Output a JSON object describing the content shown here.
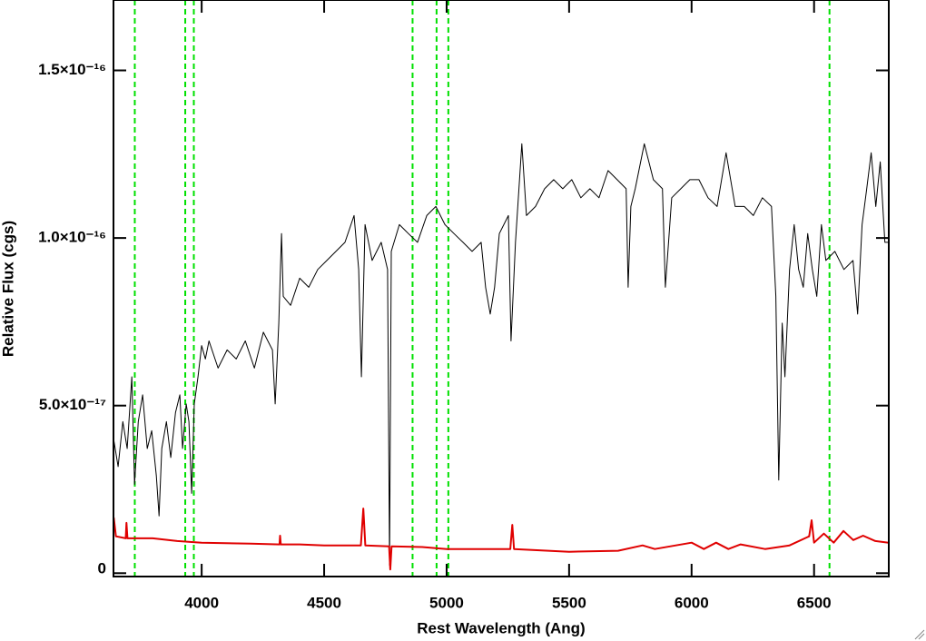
{
  "chart_data": {
    "type": "line",
    "x_label": "Rest Wavelength (Ang)",
    "y_label": "Relative Flux (cgs)",
    "xlim": [
      3640,
      6805
    ],
    "ylim": [
      -1e-18,
      1.71e-16
    ],
    "xticks": [
      4000,
      4500,
      5000,
      5500,
      6000,
      6500
    ],
    "yticks": [
      0,
      {
        "value": 5e-17,
        "label": "5.0×10⁻¹⁷"
      },
      {
        "value": 1e-16,
        "label": "1.0×10⁻¹⁶"
      },
      {
        "value": 1.5e-16,
        "label": "1.5×10⁻¹⁶"
      }
    ],
    "vlines": [
      3727,
      3933,
      3968,
      4861,
      4959,
      5007,
      6563
    ],
    "vline_color": "#00e000",
    "series": [
      {
        "color": "#000000",
        "x": [
          3641,
          3659,
          3678,
          3696,
          3715,
          3726,
          3741,
          3759,
          3778,
          3796,
          3815,
          3826,
          3837,
          3856,
          3874,
          3893,
          3911,
          3922,
          3937,
          3948,
          3959,
          3970,
          3985,
          4000,
          4015,
          4030,
          4067,
          4104,
          4141,
          4178,
          4215,
          4252,
          4289,
          4300,
          4315,
          4326,
          4333,
          4363,
          4400,
          4437,
          4474,
          4511,
          4548,
          4585,
          4622,
          4641,
          4652,
          4667,
          4696,
          4733,
          4759,
          4767,
          4774,
          4807,
          4844,
          4881,
          4919,
          4956,
          4993,
          5030,
          5067,
          5104,
          5141,
          5159,
          5178,
          5196,
          5215,
          5252,
          5263,
          5281,
          5307,
          5326,
          5363,
          5400,
          5437,
          5474,
          5511,
          5548,
          5585,
          5622,
          5659,
          5696,
          5733,
          5741,
          5752,
          5770,
          5807,
          5844,
          5881,
          5893,
          5919,
          5956,
          5993,
          6030,
          6067,
          6104,
          6141,
          6178,
          6215,
          6252,
          6289,
          6326,
          6344,
          6356,
          6370,
          6381,
          6400,
          6419,
          6437,
          6456,
          6474,
          6493,
          6511,
          6530,
          6548,
          6585,
          6622,
          6659,
          6678,
          6696,
          6715,
          6733,
          6752,
          6770,
          6789,
          6804
        ],
        "values": [
          3.98e-17,
          3.18e-17,
          4.52e-17,
          3.72e-17,
          5.86e-17,
          2.65e-17,
          4.52e-17,
          5.32e-17,
          3.72e-17,
          4.25e-17,
          2.91e-17,
          1.71e-17,
          3.72e-17,
          4.52e-17,
          3.45e-17,
          4.79e-17,
          5.32e-17,
          3.72e-17,
          5.05e-17,
          4.52e-17,
          2.38e-17,
          5.05e-17,
          5.86e-17,
          6.79e-17,
          6.39e-17,
          6.93e-17,
          6.12e-17,
          6.66e-17,
          6.39e-17,
          6.93e-17,
          6.12e-17,
          7.19e-17,
          6.66e-17,
          5.05e-17,
          7.46e-17,
          1.013e-16,
          8.26e-17,
          7.99e-17,
          8.8e-17,
          8.53e-17,
          9.06e-17,
          9.33e-17,
          9.6e-17,
          9.87e-17,
          1.067e-16,
          9.06e-17,
          5.86e-17,
          1.04e-16,
          9.33e-17,
          9.87e-17,
          9.06e-17,
          2.4e-18,
          9.6e-17,
          1.04e-16,
          1.013e-16,
          9.87e-17,
          1.067e-16,
          1.094e-16,
          1.04e-16,
          1.013e-16,
          9.87e-17,
          9.6e-17,
          9.87e-17,
          8.53e-17,
          7.73e-17,
          8.53e-17,
          1.013e-16,
          1.067e-16,
          6.93e-17,
          9.87e-17,
          1.281e-16,
          1.067e-16,
          1.094e-16,
          1.147e-16,
          1.174e-16,
          1.147e-16,
          1.174e-16,
          1.12e-16,
          1.147e-16,
          1.12e-16,
          1.201e-16,
          1.174e-16,
          1.147e-16,
          8.53e-17,
          1.094e-16,
          1.147e-16,
          1.281e-16,
          1.174e-16,
          1.147e-16,
          8.53e-17,
          1.12e-16,
          1.147e-16,
          1.174e-16,
          1.174e-16,
          1.12e-16,
          1.094e-16,
          1.254e-16,
          1.094e-16,
          1.094e-16,
          1.067e-16,
          1.12e-16,
          1.094e-16,
          8.26e-17,
          2.78e-17,
          7.46e-17,
          5.86e-17,
          9.06e-17,
          1.04e-16,
          9.06e-17,
          8.53e-17,
          1.013e-16,
          9.06e-17,
          8.26e-17,
          1.04e-16,
          9.33e-17,
          9.6e-17,
          9.06e-17,
          9.33e-17,
          7.73e-17,
          1.04e-16,
          1.147e-16,
          1.254e-16,
          1.094e-16,
          1.227e-16,
          9.87e-17,
          9.87e-17
        ]
      },
      {
        "color": "#e00000",
        "x": [
          3641,
          3650,
          3690,
          3693,
          3697,
          3800,
          3900,
          4000,
          4200,
          4318,
          4320,
          4323,
          4400,
          4500,
          4650,
          4660,
          4668,
          4765,
          4770,
          4775,
          4900,
          5000,
          5260,
          5268,
          5275,
          5500,
          5700,
          5800,
          5850,
          6000,
          6050,
          6100,
          6150,
          6200,
          6300,
          6400,
          6480,
          6490,
          6500,
          6540,
          6580,
          6620,
          6660,
          6700,
          6750,
          6804
        ],
        "values": [
          1.66e-17,
          1.1e-17,
          1.04e-17,
          1.5e-17,
          1.04e-17,
          1.04e-17,
          9.6e-18,
          9.1e-18,
          8.8e-18,
          8.6e-18,
          1.12e-17,
          8.6e-18,
          8.6e-18,
          8.3e-18,
          8.3e-18,
          1.93e-17,
          8.3e-18,
          8e-18,
          1.1e-18,
          8e-18,
          7.8e-18,
          7.2e-18,
          7.2e-18,
          1.44e-17,
          7.2e-18,
          6.4e-18,
          6.7e-18,
          8.3e-18,
          7.2e-18,
          9.1e-18,
          7.2e-18,
          9.1e-18,
          7.2e-18,
          8.6e-18,
          7.2e-18,
          8.3e-18,
          1.1e-17,
          1.58e-17,
          9.1e-18,
          1.18e-17,
          9.1e-18,
          1.26e-17,
          9.9e-18,
          1.12e-17,
          9.6e-18,
          9.1e-18
        ]
      }
    ]
  }
}
